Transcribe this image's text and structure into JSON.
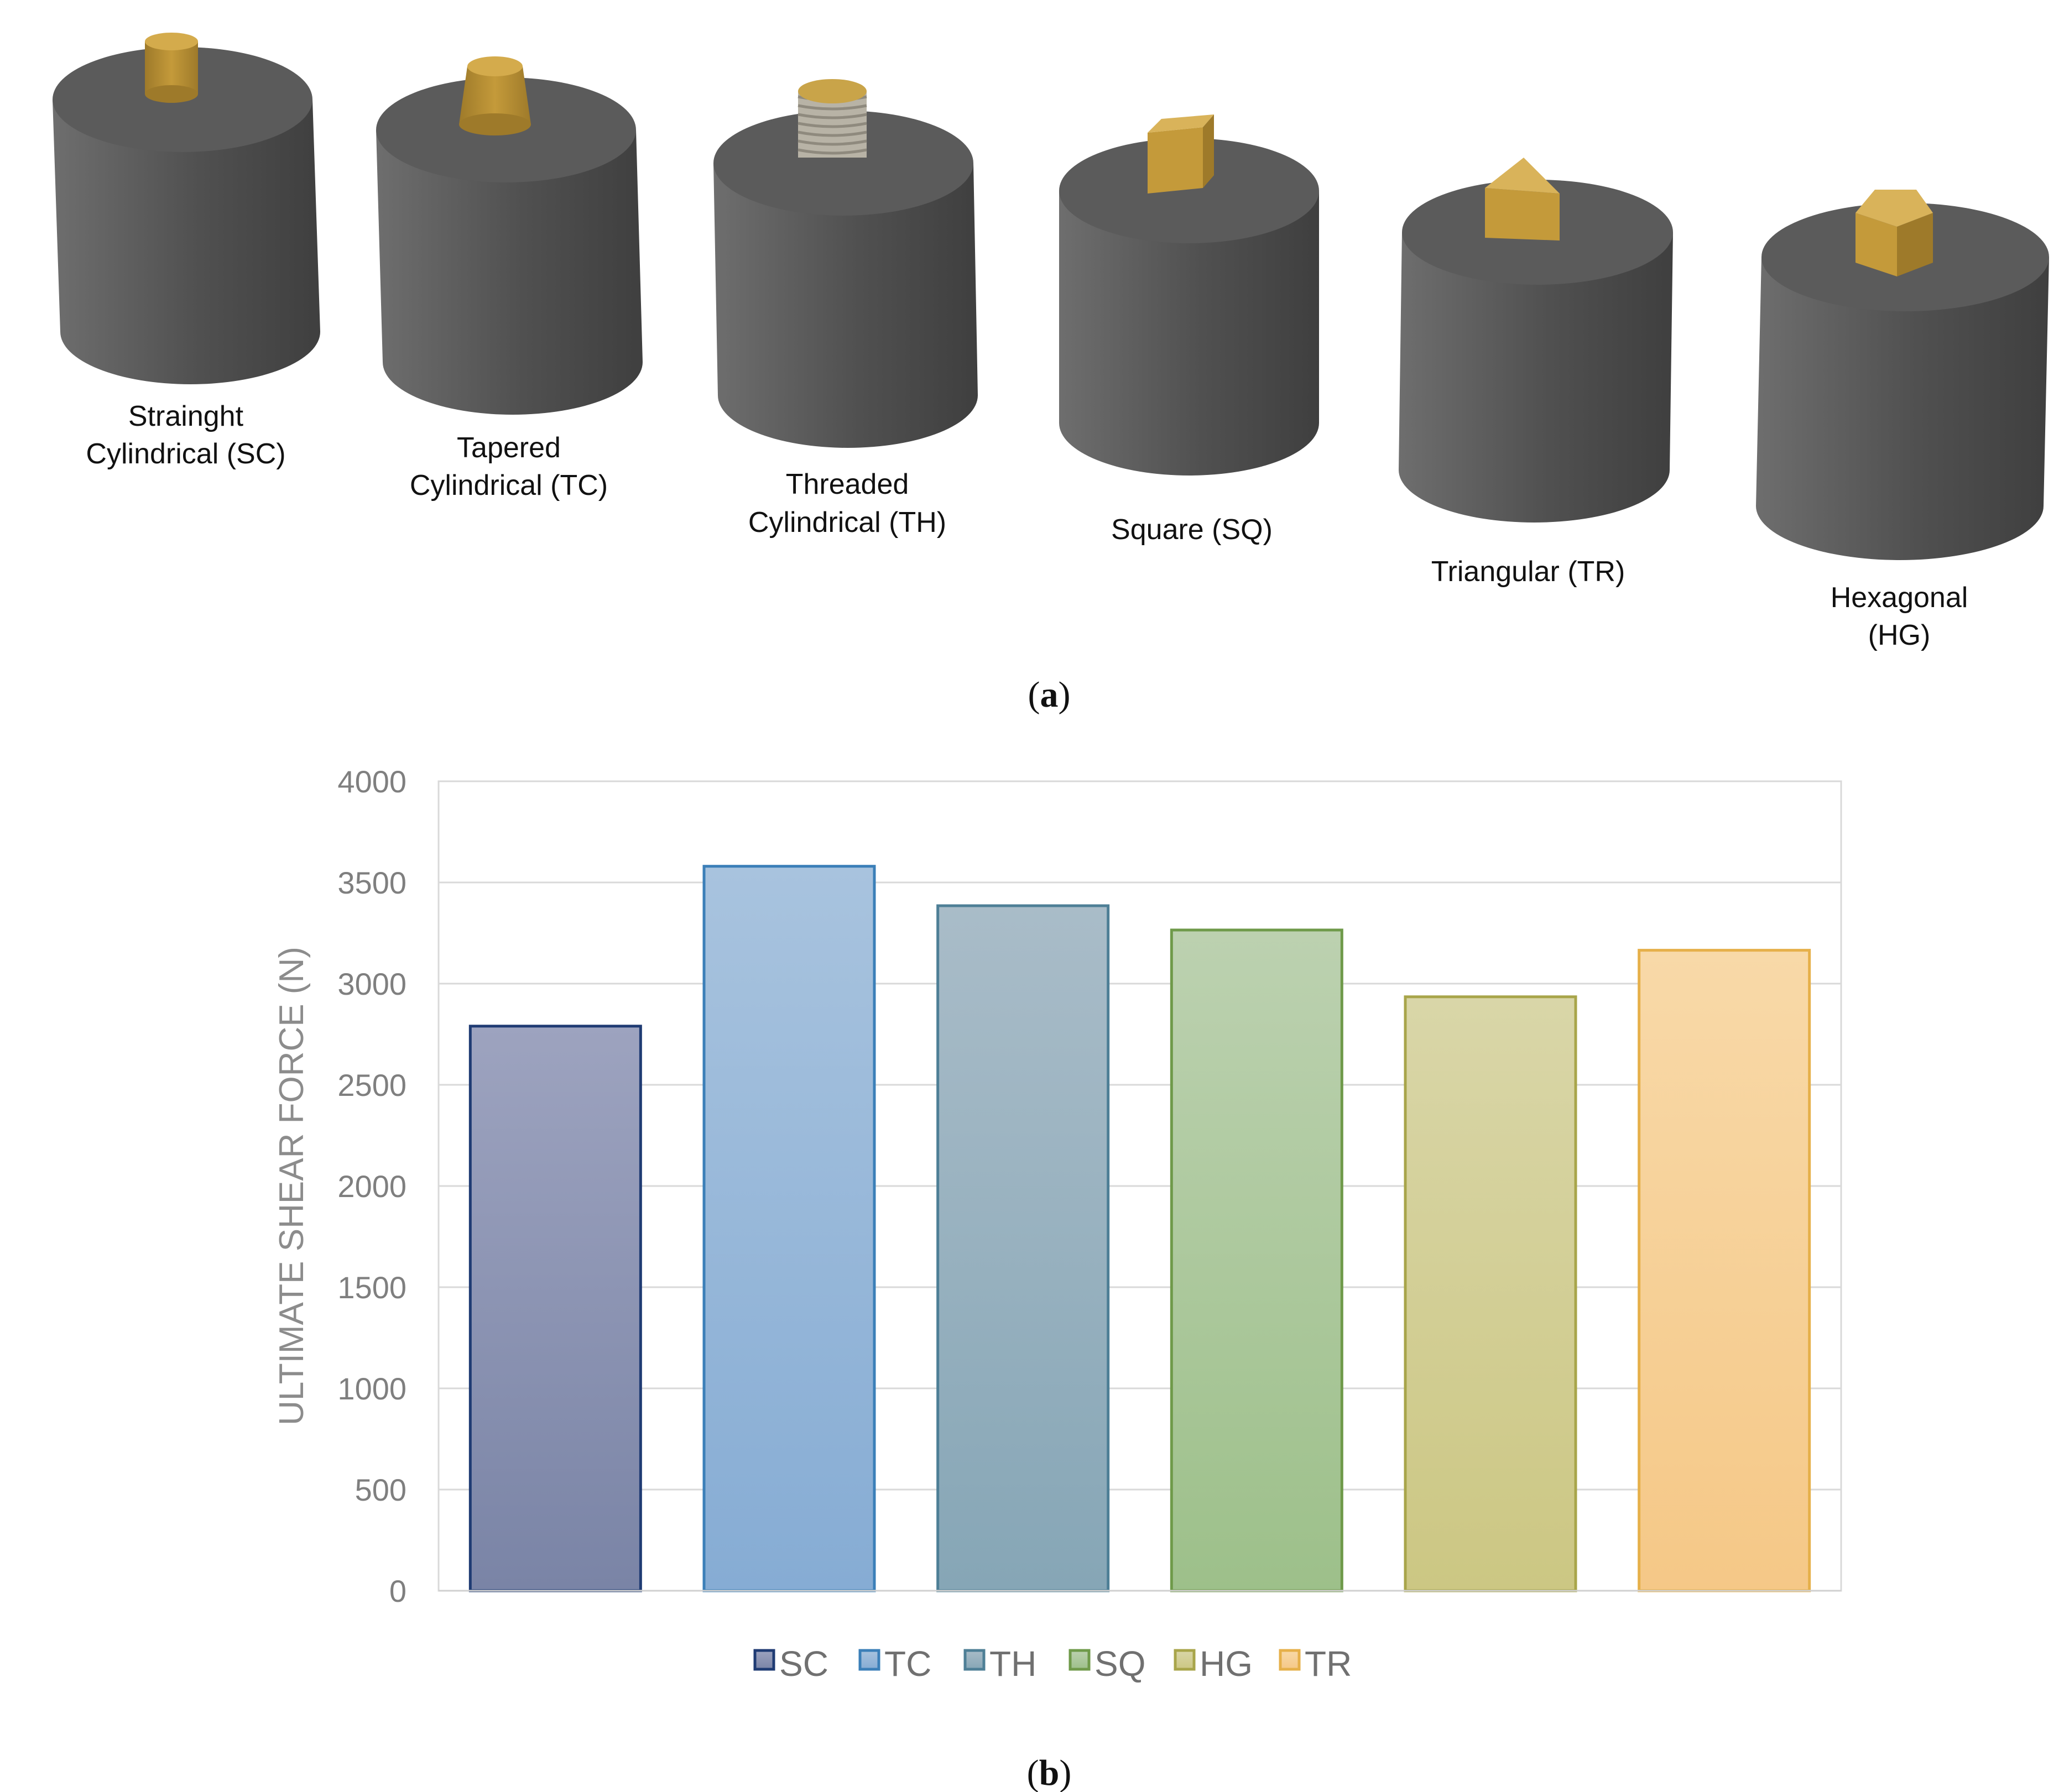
{
  "panel_a": {
    "caption_open": "(",
    "caption_letter": "a",
    "caption_close": ")",
    "tools": [
      {
        "code": "SC",
        "line1": "Strainght",
        "line2": "Cylindrical (SC)",
        "shape": "straight-cylinder"
      },
      {
        "code": "TC",
        "line1": "Tapered",
        "line2": "Cylindrical (TC)",
        "shape": "tapered-cylinder"
      },
      {
        "code": "TH",
        "line1": "Threaded",
        "line2": "Cylindrical (TH)",
        "shape": "threaded-cylinder"
      },
      {
        "code": "SQ",
        "line1": "Square (SQ)",
        "line2": "",
        "shape": "square"
      },
      {
        "code": "TR",
        "line1": "Triangular (TR)",
        "line2": "",
        "shape": "triangle"
      },
      {
        "code": "HG",
        "line1": "Hexagonal",
        "line2": "(HG)",
        "shape": "hexagon"
      }
    ],
    "colors": {
      "shoulder_top": "#5b5b5b",
      "shoulder_side_light": "#6e6e6e",
      "shoulder_side_dark": "#3f3f3f",
      "pin": "#c49a3a",
      "pin_dark": "#9e7a2a",
      "thread": "#b8b3a6"
    }
  },
  "panel_b": {
    "caption_open": "(",
    "caption_letter": "b",
    "caption_close": ")"
  },
  "chart_data": {
    "type": "bar",
    "title": "",
    "xlabel": "",
    "ylabel": "ULTIMATE SHEAR FORCE (N)",
    "ylim": [
      0,
      4000
    ],
    "yticks": [
      0,
      500,
      1000,
      1500,
      2000,
      2500,
      3000,
      3500,
      4000
    ],
    "grid": true,
    "legend_position": "bottom",
    "categories": [
      "SC",
      "TC",
      "TH",
      "SQ",
      "HG",
      "TR"
    ],
    "values": [
      2790,
      3580,
      3385,
      3265,
      2935,
      3165
    ],
    "series_colors": [
      {
        "fill_top": "#9da3bf",
        "fill_bottom": "#7a84a6",
        "stroke": "#1f3b73"
      },
      {
        "fill_top": "#a8c3de",
        "fill_bottom": "#86acd4",
        "stroke": "#3b7fb8"
      },
      {
        "fill_top": "#a9bcc8",
        "fill_bottom": "#86a6b6",
        "stroke": "#4e7f96"
      },
      {
        "fill_top": "#bcd1b0",
        "fill_bottom": "#9dc08a",
        "stroke": "#6f9a4a"
      },
      {
        "fill_top": "#d9d6a8",
        "fill_bottom": "#ccc783",
        "stroke": "#a8a54a"
      },
      {
        "fill_top": "#f8d9a8",
        "fill_bottom": "#f5c887",
        "stroke": "#e6b04a"
      }
    ]
  }
}
